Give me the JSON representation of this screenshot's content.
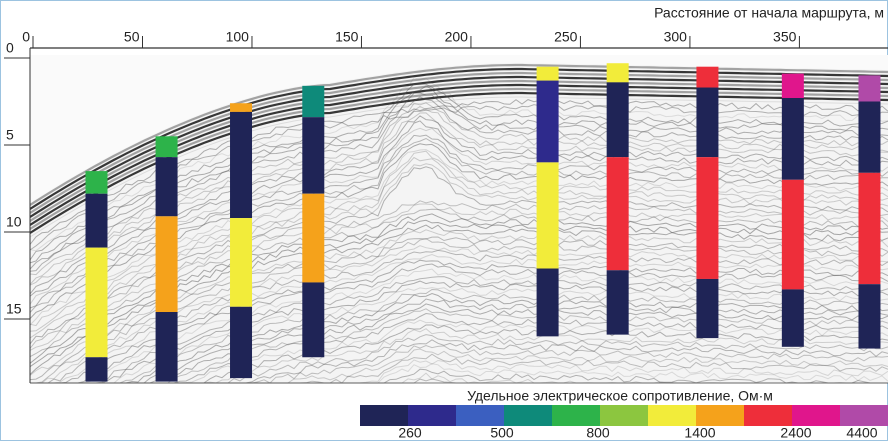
{
  "chart_data": {
    "type": "borehole-profile",
    "xlabel": "Расстояние от начала маршрута, м",
    "xlim": [
      0,
      390
    ],
    "xticks": [
      0,
      50,
      100,
      150,
      200,
      250,
      300,
      350
    ],
    "ylim": [
      0,
      18.6
    ],
    "yticks": [
      0,
      5,
      10,
      15
    ],
    "columns": [
      {
        "x": 29,
        "layers": [
          {
            "depth": [
              6.5,
              7.8
            ],
            "color": "#2db34a"
          },
          {
            "depth": [
              7.8,
              10.9
            ],
            "color": "#1f2456"
          },
          {
            "depth": [
              10.9,
              17.2
            ],
            "color": "#f2ec3a"
          },
          {
            "depth": [
              17.2,
              18.6
            ],
            "color": "#1f2456"
          }
        ]
      },
      {
        "x": 61,
        "layers": [
          {
            "depth": [
              4.5,
              5.7
            ],
            "color": "#2db34a"
          },
          {
            "depth": [
              5.7,
              9.1
            ],
            "color": "#1f2456"
          },
          {
            "depth": [
              9.1,
              14.6
            ],
            "color": "#f5a21b"
          },
          {
            "depth": [
              14.6,
              18.6
            ],
            "color": "#1f2456"
          }
        ]
      },
      {
        "x": 95,
        "layers": [
          {
            "depth": [
              2.6,
              3.1
            ],
            "color": "#f5a21b"
          },
          {
            "depth": [
              3.1,
              9.2
            ],
            "color": "#1f2456"
          },
          {
            "depth": [
              9.2,
              14.3
            ],
            "color": "#f2ec3a"
          },
          {
            "depth": [
              14.3,
              18.4
            ],
            "color": "#1f2456"
          }
        ]
      },
      {
        "x": 128,
        "layers": [
          {
            "depth": [
              1.6,
              3.4
            ],
            "color": "#0e8a7a"
          },
          {
            "depth": [
              3.4,
              7.8
            ],
            "color": "#1f2456"
          },
          {
            "depth": [
              7.8,
              12.9
            ],
            "color": "#f5a21b"
          },
          {
            "depth": [
              12.9,
              17.2
            ],
            "color": "#1f2456"
          }
        ]
      },
      {
        "x": 235,
        "layers": [
          {
            "depth": [
              0.5,
              1.3
            ],
            "color": "#f2ec3a"
          },
          {
            "depth": [
              1.3,
              6.0
            ],
            "color": "#2e2a8c"
          },
          {
            "depth": [
              6.0,
              12.1
            ],
            "color": "#f2ec3a"
          },
          {
            "depth": [
              12.1,
              16.0
            ],
            "color": "#1f2456"
          }
        ]
      },
      {
        "x": 267,
        "layers": [
          {
            "depth": [
              0.3,
              1.4
            ],
            "color": "#f2ec3a"
          },
          {
            "depth": [
              1.4,
              5.7
            ],
            "color": "#1f2456"
          },
          {
            "depth": [
              5.7,
              12.2
            ],
            "color": "#ee2e3a"
          },
          {
            "depth": [
              12.2,
              15.9
            ],
            "color": "#1f2456"
          }
        ]
      },
      {
        "x": 308,
        "layers": [
          {
            "depth": [
              0.5,
              1.7
            ],
            "color": "#ee2e3a"
          },
          {
            "depth": [
              1.7,
              5.7
            ],
            "color": "#1f2456"
          },
          {
            "depth": [
              5.7,
              12.7
            ],
            "color": "#ee2e3a"
          },
          {
            "depth": [
              12.7,
              16.1
            ],
            "color": "#1f2456"
          }
        ]
      },
      {
        "x": 347,
        "layers": [
          {
            "depth": [
              0.9,
              2.3
            ],
            "color": "#e0168c"
          },
          {
            "depth": [
              2.3,
              7.0
            ],
            "color": "#1f2456"
          },
          {
            "depth": [
              7.0,
              13.3
            ],
            "color": "#ee2e3a"
          },
          {
            "depth": [
              13.3,
              16.6
            ],
            "color": "#1f2456"
          }
        ]
      },
      {
        "x": 382,
        "layers": [
          {
            "depth": [
              1.0,
              2.5
            ],
            "color": "#b04aa8"
          },
          {
            "depth": [
              2.5,
              6.6
            ],
            "color": "#1f2456"
          },
          {
            "depth": [
              6.6,
              13.0
            ],
            "color": "#ee2e3a"
          },
          {
            "depth": [
              13.0,
              16.7
            ],
            "color": "#1f2456"
          }
        ]
      }
    ],
    "colorbar": {
      "title": "Удельное электрическое сопротивление, Ом·м",
      "colors": [
        "#1f2456",
        "#2e2a8c",
        "#3b5fc0",
        "#0e8a7a",
        "#2db34a",
        "#8cc63f",
        "#f2ec3a",
        "#f5a21b",
        "#ee2e3a",
        "#e0168c",
        "#b04aa8"
      ],
      "ticks": [
        260,
        500,
        800,
        1400,
        2400,
        4400
      ]
    }
  }
}
